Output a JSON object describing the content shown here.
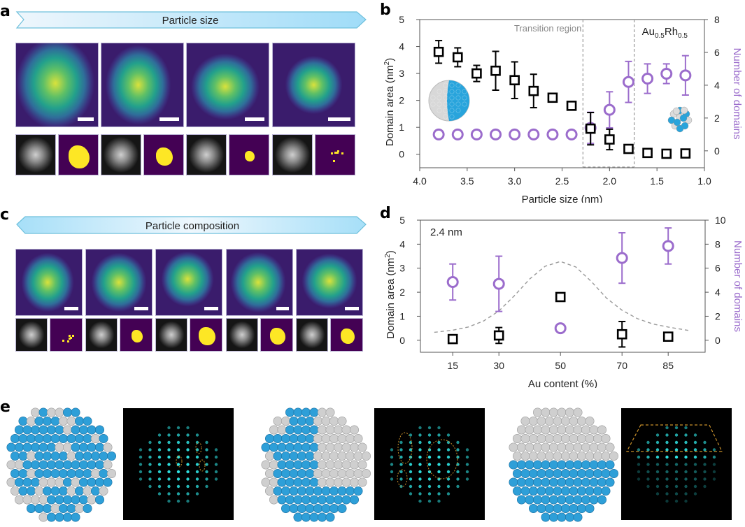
{
  "panels": {
    "a": {
      "letter": "a",
      "banner": "Particle size",
      "banner_direction": "right",
      "columns": 4
    },
    "b": {
      "letter": "b"
    },
    "c": {
      "letter": "c",
      "banner": "Particle composition",
      "banner_direction": "both",
      "columns": 5
    },
    "d": {
      "letter": "d"
    },
    "e": {
      "letter": "e",
      "models": 3
    }
  },
  "colors": {
    "purple": "#9b6ccc",
    "black": "#000000",
    "gray_dashed": "#9a9a9a",
    "banner_light": "#eef6fc",
    "banner_dark": "#9fdcf8",
    "banner_edge": "#6fc0dc",
    "viridis_bg": "#3b1c6e",
    "viridis_particle": "#2aa3a0",
    "viridis_bright": "#d8e43a",
    "mask_bg": "#440154",
    "mask_fg": "#fde725",
    "atom_blue": "#2e9fd8",
    "atom_gray": "#cfcfcf",
    "sim_cyan": "#2fe4e4",
    "dashed_orange": "#c8902a"
  },
  "chart_data": [
    {
      "id": "b",
      "type": "scatter",
      "title": "",
      "xlabel": "Particle size (nm)",
      "ylabel_left": "Domain area (nm²)",
      "ylabel_left_base": "Domain area (nm",
      "ylabel_left_sup": "2",
      "ylabel_left_end": ")",
      "ylabel_right": "Number of domains",
      "x_reversed": true,
      "xlim": [
        4.0,
        1.0
      ],
      "ylim_left": [
        -0.5,
        5
      ],
      "ylim_right": [
        -1.03,
        8
      ],
      "xticks": [
        "4.0",
        "3.5",
        "3.0",
        "2.5",
        "2.0",
        "1.5",
        "1.0"
      ],
      "xtick_values": [
        4.0,
        3.5,
        3.0,
        2.5,
        2.0,
        1.5,
        1.0
      ],
      "yticks_left": [
        "0",
        "1",
        "2",
        "3",
        "4",
        "5"
      ],
      "yticks_left_values": [
        0,
        1,
        2,
        3,
        4,
        5
      ],
      "yticks_right": [
        "0",
        "2",
        "4",
        "6",
        "8"
      ],
      "yticks_right_values": [
        0,
        2,
        4,
        6,
        8
      ],
      "annotations": {
        "transition": "Transition region",
        "transition_range": [
          2.28,
          1.74
        ],
        "composition_base_1": "Au",
        "composition_sub_1": "0.5",
        "composition_base_2": "Rh",
        "composition_sub_2": "0.5"
      },
      "grid": false,
      "series": [
        {
          "name": "Domain area",
          "axis": "left",
          "marker": "square",
          "color": "#000000",
          "x": [
            3.8,
            3.6,
            3.4,
            3.2,
            3.0,
            2.8,
            2.6,
            2.4,
            2.2,
            2.0,
            1.8,
            1.6,
            1.4,
            1.2
          ],
          "y": [
            3.8,
            3.6,
            3.0,
            3.1,
            2.75,
            2.35,
            2.1,
            1.8,
            0.95,
            0.55,
            0.2,
            0.05,
            0.02,
            0.03
          ],
          "yerr": [
            0.42,
            0.35,
            0.3,
            0.72,
            0.68,
            0.62,
            0.15,
            0.05,
            0.6,
            0.38,
            0.08,
            0.05,
            0.05,
            0.05
          ]
        },
        {
          "name": "Number of domains",
          "axis": "right",
          "marker": "circle-open",
          "color": "#9b6ccc",
          "x": [
            3.8,
            3.6,
            3.4,
            3.2,
            3.0,
            2.8,
            2.6,
            2.4,
            2.2,
            2.0,
            1.8,
            1.6,
            1.4,
            1.2
          ],
          "y": [
            1.0,
            1.0,
            1.0,
            1.0,
            1.0,
            1.0,
            1.0,
            1.0,
            1.4,
            2.5,
            4.2,
            4.4,
            4.7,
            4.6
          ],
          "yerr": [
            0,
            0,
            0,
            0,
            0,
            0,
            0,
            0,
            0.95,
            1.1,
            1.25,
            0.9,
            0.6,
            1.2
          ]
        }
      ]
    },
    {
      "id": "d",
      "type": "scatter",
      "title": "",
      "xlabel": "Au content (%)",
      "ylabel_left": "Domain area (nm²)",
      "ylabel_left_base": "Domain area (nm",
      "ylabel_left_sup": "2",
      "ylabel_left_end": ")",
      "ylabel_right": "Number of domains",
      "xlim": [
        4.5,
        97
      ],
      "ylim_left": [
        -0.5,
        5
      ],
      "ylim_right": [
        -1,
        10
      ],
      "xticks": [
        "15",
        "30",
        "50",
        "70",
        "85"
      ],
      "xtick_values": [
        15,
        30,
        50,
        70,
        85
      ],
      "yticks_left": [
        "0",
        "1",
        "2",
        "3",
        "4",
        "5"
      ],
      "yticks_left_values": [
        0,
        1,
        2,
        3,
        4,
        5
      ],
      "yticks_right": [
        "0",
        "2",
        "4",
        "6",
        "8",
        "10"
      ],
      "yticks_right_values": [
        0,
        2,
        4,
        6,
        8,
        10
      ],
      "annotations": {
        "size_label": "2.4 nm"
      },
      "grid": false,
      "series": [
        {
          "name": "Domain area",
          "axis": "left",
          "marker": "square",
          "color": "#000000",
          "x": [
            15,
            30,
            50,
            70,
            85
          ],
          "y": [
            0.05,
            0.2,
            1.8,
            0.25,
            0.15
          ],
          "yerr": [
            0.03,
            0.33,
            0.03,
            0.53,
            0.03
          ]
        },
        {
          "name": "Number of domains",
          "axis": "right",
          "marker": "circle-open",
          "color": "#9b6ccc",
          "x": [
            15,
            30,
            50,
            70,
            85
          ],
          "y": [
            4.85,
            4.7,
            1.0,
            6.85,
            7.85
          ],
          "yerr": [
            1.5,
            2.3,
            0,
            2.1,
            1.5
          ]
        },
        {
          "name": "Trend (dashed)",
          "axis": "left",
          "marker": "none",
          "style": "dashed",
          "color": "#9a9a9a",
          "x": [
            9,
            15,
            20,
            25,
            30,
            35,
            40,
            45,
            50,
            55,
            60,
            65,
            70,
            75,
            80,
            85,
            92
          ],
          "y": [
            0.33,
            0.42,
            0.55,
            0.8,
            1.22,
            1.85,
            2.55,
            3.08,
            3.28,
            3.05,
            2.45,
            1.75,
            1.25,
            0.9,
            0.68,
            0.55,
            0.4
          ]
        }
      ]
    }
  ]
}
